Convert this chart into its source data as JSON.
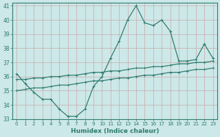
{
  "xlabel": "Humidex (Indice chaleur)",
  "bg_color": "#cce8e8",
  "grid_color": "#c0d8d8",
  "line_color": "#2d7a6e",
  "x": [
    0,
    1,
    2,
    3,
    4,
    5,
    6,
    7,
    8,
    9,
    10,
    11,
    12,
    13,
    14,
    15,
    16,
    17,
    18,
    19,
    20,
    21,
    22,
    23
  ],
  "y_main": [
    36.2,
    35.5,
    34.9,
    34.4,
    34.4,
    33.7,
    33.2,
    33.2,
    33.7,
    35.3,
    36.0,
    37.3,
    38.5,
    40.0,
    41.0,
    39.8,
    39.6,
    40.0,
    39.2,
    37.1,
    37.1,
    37.2,
    38.3,
    37.3
  ],
  "y_upper": [
    35.8,
    35.8,
    35.9,
    35.9,
    36.0,
    36.0,
    36.1,
    36.1,
    36.2,
    36.3,
    36.3,
    36.4,
    36.4,
    36.5,
    36.6,
    36.6,
    36.7,
    36.7,
    36.8,
    36.9,
    36.9,
    37.0,
    37.0,
    37.1
  ],
  "y_lower": [
    35.0,
    35.1,
    35.2,
    35.2,
    35.3,
    35.4,
    35.4,
    35.5,
    35.6,
    35.7,
    35.7,
    35.8,
    35.9,
    35.9,
    36.0,
    36.1,
    36.1,
    36.2,
    36.3,
    36.3,
    36.4,
    36.5,
    36.5,
    36.6
  ],
  "ylim": [
    33,
    41
  ],
  "yticks": [
    33,
    34,
    35,
    36,
    37,
    38,
    39,
    40,
    41
  ],
  "xlim": [
    -0.5,
    23.5
  ]
}
